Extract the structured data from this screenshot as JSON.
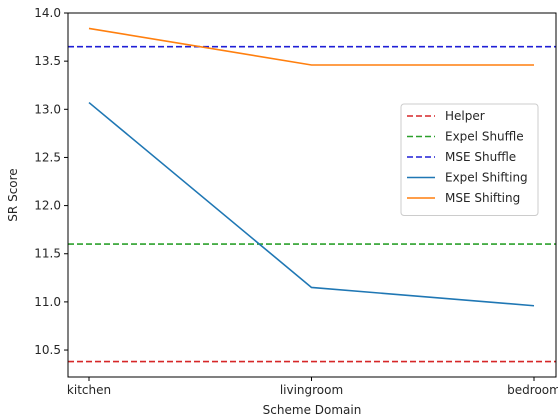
{
  "chart_data": {
    "type": "line",
    "title": "",
    "xlabel": "Scheme Domain",
    "ylabel": "SR Score",
    "categories": [
      "kitchen",
      "livingroom",
      "bedroom"
    ],
    "ylim": [
      10.22,
      14.0
    ],
    "yticks": [
      "10.5",
      "11.0",
      "11.5",
      "12.0",
      "12.5",
      "13.0",
      "13.5",
      "14.0"
    ],
    "grid": false,
    "legend_position": "center-right",
    "reference_lines": [
      {
        "name": "Helper",
        "value": 10.38,
        "color": "#d62728",
        "style": "dashed"
      },
      {
        "name": "Expel Shuffle",
        "value": 11.6,
        "color": "#2ca02c",
        "style": "dashed"
      },
      {
        "name": "MSE Shuffle",
        "value": 13.65,
        "color": "#1f1fd6",
        "style": "dashed"
      }
    ],
    "series": [
      {
        "name": "Expel Shifting",
        "values": [
          13.07,
          11.15,
          10.96
        ],
        "color": "#1f77b4",
        "style": "solid"
      },
      {
        "name": "MSE Shifting",
        "values": [
          13.84,
          13.46,
          13.46
        ],
        "color": "#ff7f0e",
        "style": "solid"
      }
    ]
  }
}
